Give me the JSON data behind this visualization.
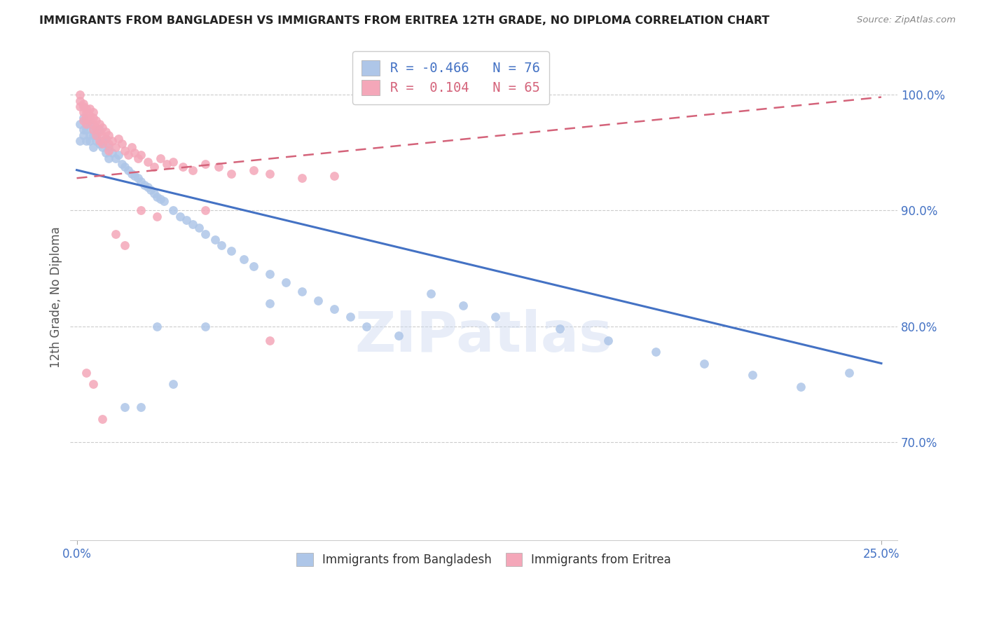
{
  "title": "IMMIGRANTS FROM BANGLADESH VS IMMIGRANTS FROM ERITREA 12TH GRADE, NO DIPLOMA CORRELATION CHART",
  "source": "Source: ZipAtlas.com",
  "ylabel": "12th Grade, No Diploma",
  "legend_blue_label": "Immigrants from Bangladesh",
  "legend_pink_label": "Immigrants from Eritrea",
  "legend_blue_R": "-0.466",
  "legend_blue_N": "76",
  "legend_pink_R": " 0.104",
  "legend_pink_N": "65",
  "blue_color": "#aec6e8",
  "pink_color": "#f4a7b9",
  "blue_line_color": "#4472c4",
  "pink_line_color": "#d4637a",
  "watermark": "ZIPatlas",
  "ylim": [
    0.615,
    1.035
  ],
  "xlim": [
    -0.002,
    0.255
  ],
  "ytick_vals": [
    0.7,
    0.8,
    0.9,
    1.0
  ],
  "ytick_labels": [
    "70.0%",
    "80.0%",
    "90.0%",
    "100.0%"
  ],
  "blue_line_x": [
    0.0,
    0.25
  ],
  "blue_line_y": [
    0.935,
    0.768
  ],
  "pink_line_x": [
    0.0,
    0.25
  ],
  "pink_line_y": [
    0.928,
    0.998
  ],
  "blue_scatter_x": [
    0.001,
    0.001,
    0.002,
    0.002,
    0.002,
    0.003,
    0.003,
    0.003,
    0.004,
    0.004,
    0.004,
    0.005,
    0.005,
    0.005,
    0.006,
    0.006,
    0.007,
    0.007,
    0.008,
    0.008,
    0.009,
    0.009,
    0.01,
    0.01,
    0.011,
    0.012,
    0.013,
    0.014,
    0.015,
    0.016,
    0.017,
    0.018,
    0.019,
    0.02,
    0.021,
    0.022,
    0.023,
    0.024,
    0.025,
    0.026,
    0.027,
    0.03,
    0.032,
    0.034,
    0.036,
    0.038,
    0.04,
    0.043,
    0.045,
    0.048,
    0.052,
    0.055,
    0.06,
    0.065,
    0.07,
    0.075,
    0.08,
    0.085,
    0.09,
    0.1,
    0.11,
    0.12,
    0.13,
    0.15,
    0.165,
    0.18,
    0.195,
    0.21,
    0.225,
    0.24,
    0.015,
    0.02,
    0.025,
    0.03,
    0.04,
    0.06
  ],
  "blue_scatter_y": [
    0.96,
    0.975,
    0.965,
    0.98,
    0.97,
    0.975,
    0.96,
    0.97,
    0.965,
    0.975,
    0.96,
    0.965,
    0.97,
    0.955,
    0.96,
    0.965,
    0.958,
    0.97,
    0.96,
    0.955,
    0.962,
    0.95,
    0.955,
    0.945,
    0.95,
    0.945,
    0.948,
    0.94,
    0.938,
    0.935,
    0.932,
    0.93,
    0.928,
    0.925,
    0.922,
    0.92,
    0.918,
    0.915,
    0.912,
    0.91,
    0.908,
    0.9,
    0.895,
    0.892,
    0.888,
    0.885,
    0.88,
    0.875,
    0.87,
    0.865,
    0.858,
    0.852,
    0.845,
    0.838,
    0.83,
    0.822,
    0.815,
    0.808,
    0.8,
    0.792,
    0.828,
    0.818,
    0.808,
    0.798,
    0.788,
    0.778,
    0.768,
    0.758,
    0.748,
    0.76,
    0.73,
    0.73,
    0.8,
    0.75,
    0.8,
    0.82
  ],
  "pink_scatter_x": [
    0.001,
    0.001,
    0.001,
    0.002,
    0.002,
    0.002,
    0.002,
    0.003,
    0.003,
    0.003,
    0.003,
    0.004,
    0.004,
    0.004,
    0.005,
    0.005,
    0.005,
    0.005,
    0.006,
    0.006,
    0.006,
    0.007,
    0.007,
    0.007,
    0.008,
    0.008,
    0.008,
    0.009,
    0.009,
    0.01,
    0.01,
    0.01,
    0.011,
    0.012,
    0.013,
    0.014,
    0.015,
    0.016,
    0.017,
    0.018,
    0.019,
    0.02,
    0.022,
    0.024,
    0.026,
    0.028,
    0.03,
    0.033,
    0.036,
    0.04,
    0.044,
    0.048,
    0.055,
    0.06,
    0.07,
    0.08,
    0.003,
    0.005,
    0.008,
    0.012,
    0.015,
    0.02,
    0.025,
    0.04,
    0.06
  ],
  "pink_scatter_y": [
    0.995,
    0.99,
    1.0,
    0.99,
    0.985,
    0.978,
    0.992,
    0.988,
    0.98,
    0.985,
    0.975,
    0.982,
    0.978,
    0.988,
    0.98,
    0.975,
    0.985,
    0.97,
    0.978,
    0.972,
    0.965,
    0.975,
    0.968,
    0.96,
    0.972,
    0.965,
    0.958,
    0.968,
    0.962,
    0.965,
    0.958,
    0.952,
    0.96,
    0.955,
    0.962,
    0.958,
    0.952,
    0.948,
    0.955,
    0.95,
    0.945,
    0.948,
    0.942,
    0.938,
    0.945,
    0.94,
    0.942,
    0.938,
    0.935,
    0.94,
    0.938,
    0.932,
    0.935,
    0.932,
    0.928,
    0.93,
    0.76,
    0.75,
    0.72,
    0.88,
    0.87,
    0.9,
    0.895,
    0.9,
    0.788
  ]
}
